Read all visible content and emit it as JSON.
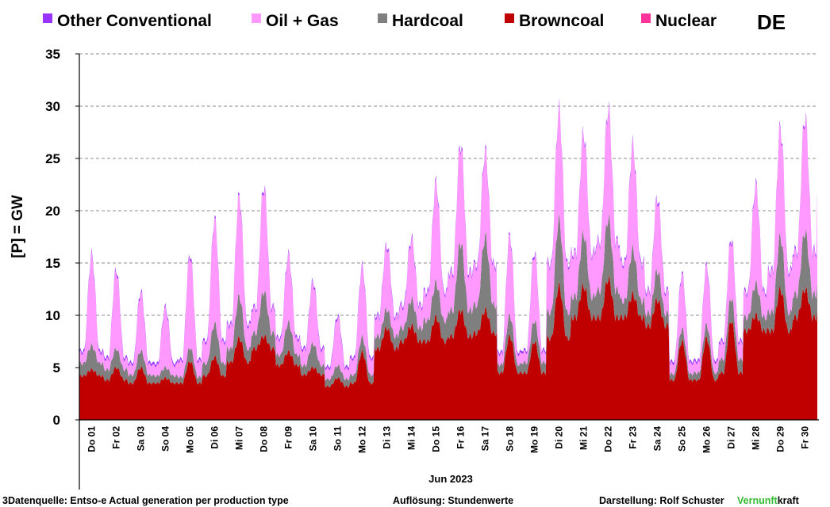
{
  "chart_data": {
    "type": "area",
    "stacked": true,
    "country_code": "DE",
    "ylabel": "[P] =  GW",
    "ylim": [
      0,
      35
    ],
    "y_ticks": [
      0,
      5,
      10,
      15,
      20,
      25,
      30,
      35
    ],
    "grid": "horizontal dashed",
    "legend_position": "top",
    "month_label": "Jun 2023",
    "x_labels": [
      "Do 01",
      "Fr 02",
      "Sa 03",
      "So 04",
      "Mo 05",
      "Di 06",
      "Mi 07",
      "Do 08",
      "Fr 09",
      "Sa 10",
      "So 11",
      "Mo 12",
      "Di 13",
      "Mi 14",
      "Do 15",
      "Fr 16",
      "Sa 17",
      "So 18",
      "Mo 19",
      "Di 20",
      "Mi 21",
      "Do 22",
      "Fr 23",
      "Sa 24",
      "So 25",
      "Mo 26",
      "Di 27",
      "Mi 28",
      "Do 29",
      "Fr 30"
    ],
    "resolution": "hourly",
    "series": [
      {
        "name": "Browncoal",
        "color": "#c00000",
        "peak": [
          4.8,
          5.0,
          5.0,
          4.0,
          5.6,
          6.0,
          7.8,
          8.0,
          6.5,
          5.0,
          4.0,
          6.5,
          8.8,
          9.0,
          9.8,
          10.5,
          10.5,
          8.0,
          7.5,
          12.8,
          12.8,
          13.5,
          12.0,
          11.5,
          7.5,
          7.8,
          9.5,
          10.0,
          12.5,
          12.5
        ],
        "trough": [
          4.2,
          3.8,
          3.5,
          3.5,
          3.5,
          4.2,
          5.5,
          6.8,
          5.2,
          4.3,
          3.2,
          3.5,
          6.8,
          7.5,
          7.5,
          8.0,
          8.3,
          4.5,
          4.5,
          7.8,
          9.8,
          9.8,
          9.8,
          9.0,
          3.8,
          3.8,
          4.5,
          8.5,
          8.5,
          9.8
        ],
        "end": 10.5
      },
      {
        "name": "Hardcoal",
        "color": "#7f7f7f",
        "peak": [
          2.3,
          1.8,
          1.6,
          1.0,
          1.3,
          3.2,
          4.0,
          4.3,
          2.8,
          2.3,
          1.2,
          1.4,
          1.8,
          2.5,
          3.3,
          6.5,
          7.0,
          2.0,
          2.0,
          6.3,
          5.0,
          5.8,
          4.3,
          2.8,
          1.2,
          1.3,
          2.2,
          3.0,
          5.0,
          5.5
        ],
        "trough": [
          1.2,
          1.0,
          0.8,
          0.7,
          0.6,
          1.2,
          1.3,
          1.5,
          1.0,
          0.9,
          0.7,
          0.8,
          1.2,
          1.3,
          2.0,
          2.5,
          2.7,
          0.8,
          1.0,
          2.5,
          2.0,
          2.6,
          1.6,
          1.2,
          0.6,
          0.7,
          1.3,
          1.3,
          1.8,
          2.2
        ],
        "end": 2.8
      },
      {
        "name": "Oil + Gas",
        "color": "#ff99ff",
        "peak": [
          8.5,
          7.4,
          5.5,
          5.6,
          8.8,
          9.8,
          9.4,
          9.9,
          6.3,
          5.8,
          4.6,
          6.6,
          6.0,
          5.7,
          9.4,
          9.3,
          8.0,
          7.5,
          6.4,
          10.3,
          9.5,
          10.3,
          9.8,
          6.8,
          5.1,
          5.5,
          5.5,
          9.3,
          10.3,
          10.8
        ],
        "trough": [
          1.0,
          1.0,
          1.0,
          1.0,
          1.5,
          2.0,
          2.2,
          2.3,
          1.5,
          1.5,
          1.0,
          1.5,
          1.8,
          2.0,
          2.6,
          3.5,
          3.7,
          1.0,
          1.0,
          4.5,
          4.0,
          4.5,
          3.5,
          2.0,
          1.0,
          1.0,
          1.6,
          2.3,
          3.8,
          4.0
        ],
        "end": 8.4
      },
      {
        "name": "Nuclear",
        "color": "#ff3399",
        "peak": [
          0
        ],
        "trough": [
          0
        ],
        "end": 0
      },
      {
        "name": "Other Conventional",
        "color": "#9933ff",
        "peak": [
          0.22
        ],
        "trough": [
          0.22
        ],
        "end": 0.22
      }
    ]
  },
  "legend": [
    {
      "label": "Other Conventional",
      "color": "#9933ff"
    },
    {
      "label": "Oil + Gas",
      "color": "#ff99ff"
    },
    {
      "label": "Hardcoal",
      "color": "#7f7f7f"
    },
    {
      "label": "Browncoal",
      "color": "#c00000"
    },
    {
      "label": "Nuclear",
      "color": "#ff3399"
    }
  ],
  "footer": {
    "source": "3Datenquelle: Entso-e  Actual generation per production type",
    "resolution": "Auflösung: Stundenwerte",
    "author": "Darstellung:  Rolf Schuster",
    "brand_green": "Vernunft",
    "brand_black": "kraft",
    "brand_green_color": "#33bb33"
  }
}
